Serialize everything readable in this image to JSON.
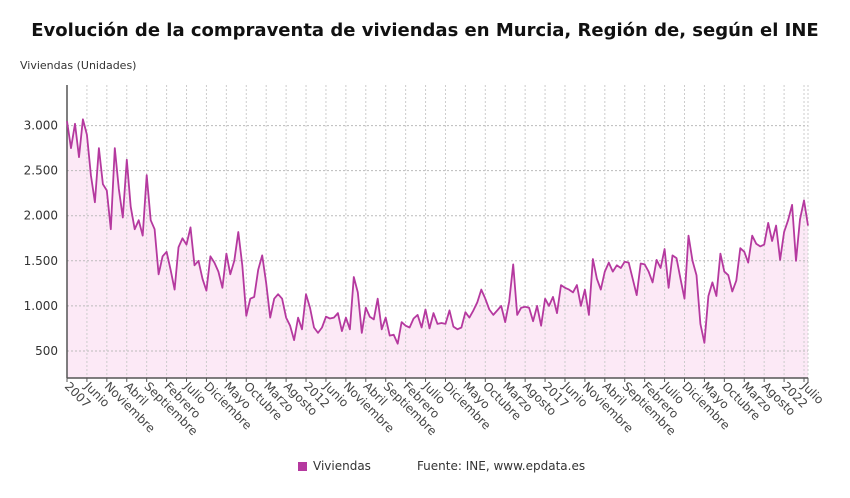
{
  "chart_data": {
    "type": "area",
    "title": "Evolución de la compraventa de viviendas en Murcia, Región de, según el INE",
    "ylabel": "Viviendas (Unidades)",
    "ylim": [
      200,
      3450
    ],
    "yticks": [
      500,
      1000,
      1500,
      2000,
      2500,
      3000
    ],
    "ytick_labels": [
      "500",
      "1.000",
      "1.500",
      "2.000",
      "2.500",
      "3.000"
    ],
    "grid": true,
    "legend_placement": "bottom",
    "x_start": "2007-01",
    "x_end": "2022-07",
    "xtick_labels": [
      "2007",
      "Junio",
      "Noviembre",
      "Abril",
      "Septiembre",
      "Febrero",
      "Julio",
      "Diciembre",
      "Mayo",
      "Octubre",
      "Marzo",
      "Agosto",
      "2012",
      "Junio",
      "Noviembre",
      "Abril",
      "Septiembre",
      "Febrero",
      "Julio",
      "Diciembre",
      "Mayo",
      "Octubre",
      "Marzo",
      "Agosto",
      "2017",
      "Junio",
      "Noviembre",
      "Abril",
      "Septiembre",
      "Febrero",
      "Julio",
      "Diciembre",
      "Mayo",
      "Octubre",
      "Marzo",
      "Agosto",
      "2022",
      "Julio"
    ],
    "series": [
      {
        "name": "Viviendas",
        "color": "#b5399f",
        "fill": "#fce9f6",
        "values": [
          3050,
          2750,
          3020,
          2650,
          3070,
          2900,
          2450,
          2150,
          2750,
          2350,
          2280,
          1850,
          2750,
          2300,
          1980,
          2620,
          2100,
          1850,
          1950,
          1780,
          2450,
          1950,
          1850,
          1350,
          1550,
          1600,
          1400,
          1180,
          1650,
          1750,
          1680,
          1870,
          1450,
          1500,
          1300,
          1170,
          1550,
          1480,
          1380,
          1200,
          1580,
          1350,
          1500,
          1820,
          1450,
          890,
          1080,
          1100,
          1400,
          1560,
          1250,
          870,
          1080,
          1130,
          1080,
          870,
          780,
          620,
          870,
          740,
          1130,
          980,
          760,
          700,
          760,
          880,
          860,
          870,
          920,
          720,
          870,
          740,
          1320,
          1150,
          700,
          980,
          880,
          850,
          1080,
          740,
          870,
          670,
          680,
          580,
          820,
          780,
          760,
          860,
          900,
          760,
          960,
          750,
          920,
          800,
          810,
          800,
          950,
          770,
          740,
          760,
          930,
          870,
          950,
          1040,
          1180,
          1080,
          960,
          900,
          950,
          1000,
          820,
          1050,
          1460,
          900,
          980,
          990,
          980,
          830,
          1000,
          780,
          1080,
          1000,
          1100,
          920,
          1230,
          1200,
          1180,
          1150,
          1230,
          1000,
          1180,
          900,
          1520,
          1300,
          1180,
          1380,
          1480,
          1380,
          1450,
          1420,
          1490,
          1480,
          1300,
          1120,
          1470,
          1460,
          1380,
          1260,
          1510,
          1420,
          1630,
          1200,
          1560,
          1530,
          1300,
          1080,
          1780,
          1500,
          1340,
          800,
          590,
          1110,
          1260,
          1110,
          1580,
          1380,
          1340,
          1160,
          1280,
          1640,
          1600,
          1480,
          1780,
          1690,
          1660,
          1680,
          1920,
          1720,
          1890,
          1510,
          1820,
          1950,
          2120,
          1500,
          1960,
          2170,
          1890
        ]
      }
    ]
  },
  "legend": {
    "label": "Viviendas",
    "source": "Fuente: INE, www.epdata.es"
  }
}
